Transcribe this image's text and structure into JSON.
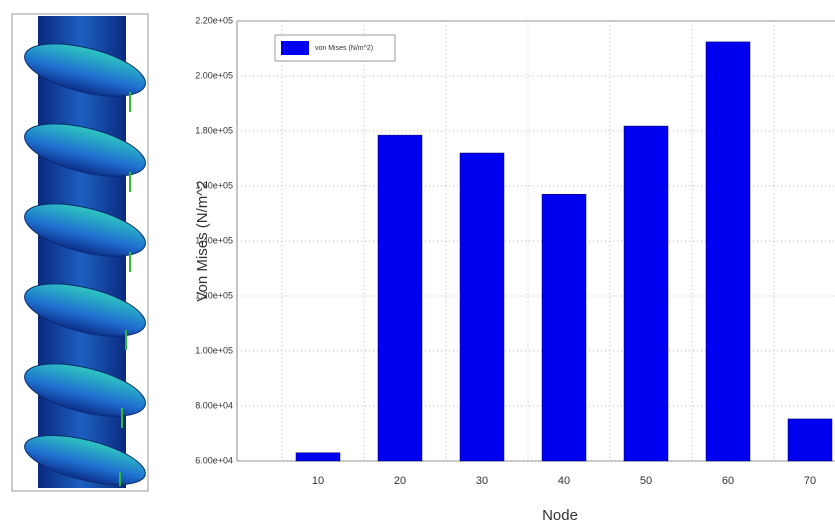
{
  "chart_data": {
    "type": "bar",
    "x_label": "Node",
    "y_label": "Von Mises (N/m^2",
    "categories": [
      "10",
      "20",
      "30",
      "40",
      "50",
      "60",
      "70"
    ],
    "series": [
      {
        "name": "von Mises (N/m^2)",
        "color": "#0000f0",
        "values": [
          63000,
          178500,
          172000,
          157000,
          181800,
          212400,
          75300
        ]
      }
    ],
    "ylim": [
      60000,
      220000
    ],
    "yticks": [
      {
        "value": 60000,
        "label": "6.00e+04"
      },
      {
        "value": 80000,
        "label": "8.00e+04"
      },
      {
        "value": 100000,
        "label": "1.00e+05"
      },
      {
        "value": 120000,
        "label": "1.20e+05"
      },
      {
        "value": 140000,
        "label": "1.40e+05"
      },
      {
        "value": 160000,
        "label": "1.60e+05"
      },
      {
        "value": 180000,
        "label": "1.80e+05"
      },
      {
        "value": 200000,
        "label": "2.00e+05"
      },
      {
        "value": 220000,
        "label": "2.20e+05"
      }
    ],
    "grid": true,
    "legend": "upper left"
  }
}
